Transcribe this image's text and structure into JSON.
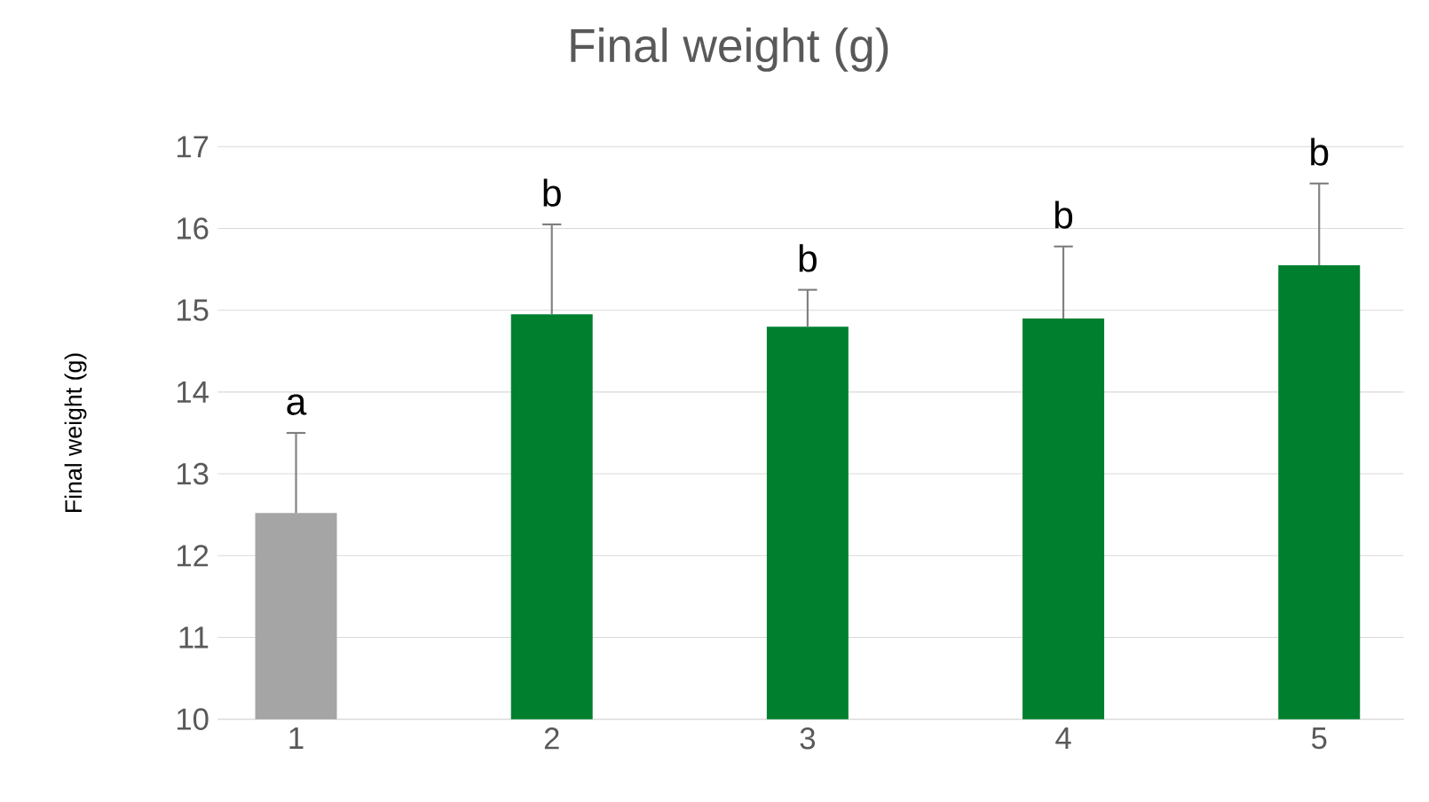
{
  "chart_data": {
    "type": "bar",
    "title": "Final weight (g)",
    "ylabel": "Final weight (g)",
    "categories": [
      "1",
      "2",
      "3",
      "4",
      "5"
    ],
    "values": [
      12.52,
      14.95,
      14.8,
      14.9,
      15.55
    ],
    "colors": [
      "#a5a5a5",
      "#00802f",
      "#00802f",
      "#00802f",
      "#00802f"
    ],
    "errors": [
      [
        12.52,
        13.5
      ],
      [
        14.95,
        16.05
      ],
      [
        14.8,
        15.25
      ],
      [
        14.9,
        15.78
      ],
      [
        15.55,
        16.55
      ]
    ],
    "ylim": [
      10,
      17
    ],
    "yticks": [
      10,
      11,
      12,
      13,
      14,
      15,
      16,
      17
    ],
    "grid": "y",
    "annotations": [
      {
        "text": "a",
        "x": "1",
        "y": 13.5
      },
      {
        "text": "b",
        "x": "2",
        "y": 16.05
      },
      {
        "text": "b",
        "x": "3",
        "y": 15.25
      },
      {
        "text": "b",
        "x": "4",
        "y": 15.78
      },
      {
        "text": "b",
        "x": "5",
        "y": 16.55
      }
    ]
  }
}
